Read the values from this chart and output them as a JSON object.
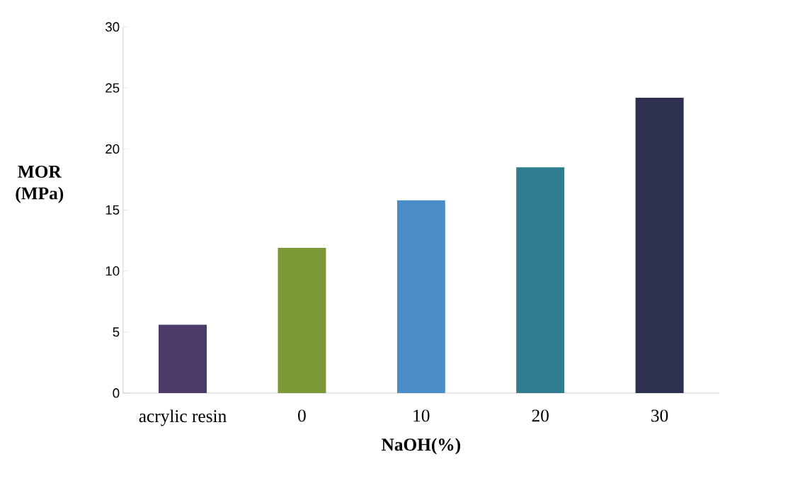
{
  "chart_data": {
    "type": "bar",
    "xlabel": "NaOH(%)",
    "ylabel": "MOR (MPa)",
    "categories": [
      "acrylic resin",
      "0",
      "10",
      "20",
      "30"
    ],
    "values": [
      5.6,
      11.9,
      15.8,
      18.5,
      24.2
    ],
    "colors": [
      "#4b3b6b",
      "#7b9a36",
      "#4a8dc9",
      "#2f7d8e",
      "#2e3050"
    ],
    "ylim": [
      0,
      30
    ],
    "yticks": [
      0,
      5,
      10,
      15,
      20,
      25,
      30
    ],
    "grid": false
  }
}
